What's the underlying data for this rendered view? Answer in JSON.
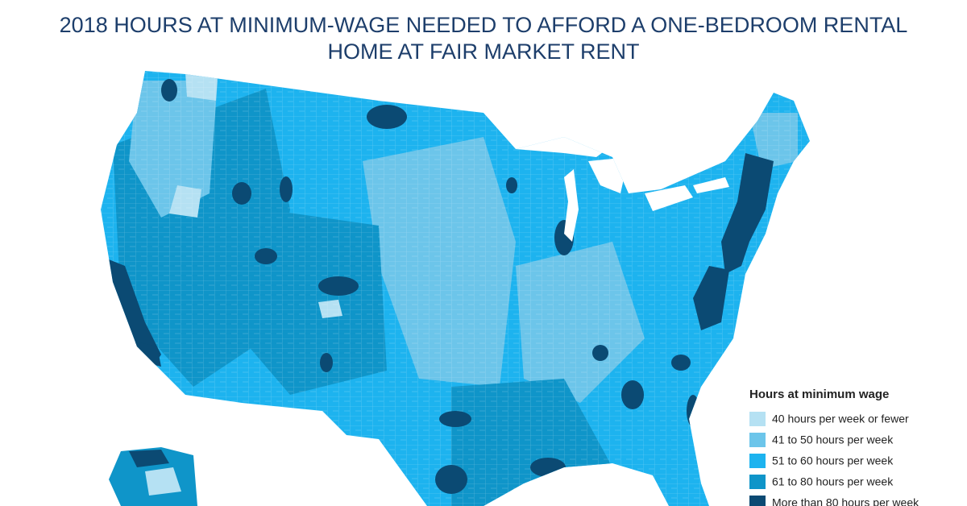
{
  "header": {
    "title_lines": [
      "2018 HOURS AT MINIMUM-WAGE NEEDED TO AFFORD A ONE-BEDROOM RENTAL",
      "HOME AT FAIR MARKET RENT"
    ]
  },
  "legend": {
    "title": "Hours at minimum wage",
    "items": [
      {
        "label": "40 hours per week or fewer",
        "color": "#b5e1f3"
      },
      {
        "label": "41 to 50 hours per week",
        "color": "#6cc5ea"
      },
      {
        "label": "51 to 60 hours per week",
        "color": "#1db3ef"
      },
      {
        "label": "61 to 80 hours per week",
        "color": "#0f95c9"
      },
      {
        "label": "More than 80 hours per week",
        "color": "#0b4a73"
      }
    ]
  }
}
